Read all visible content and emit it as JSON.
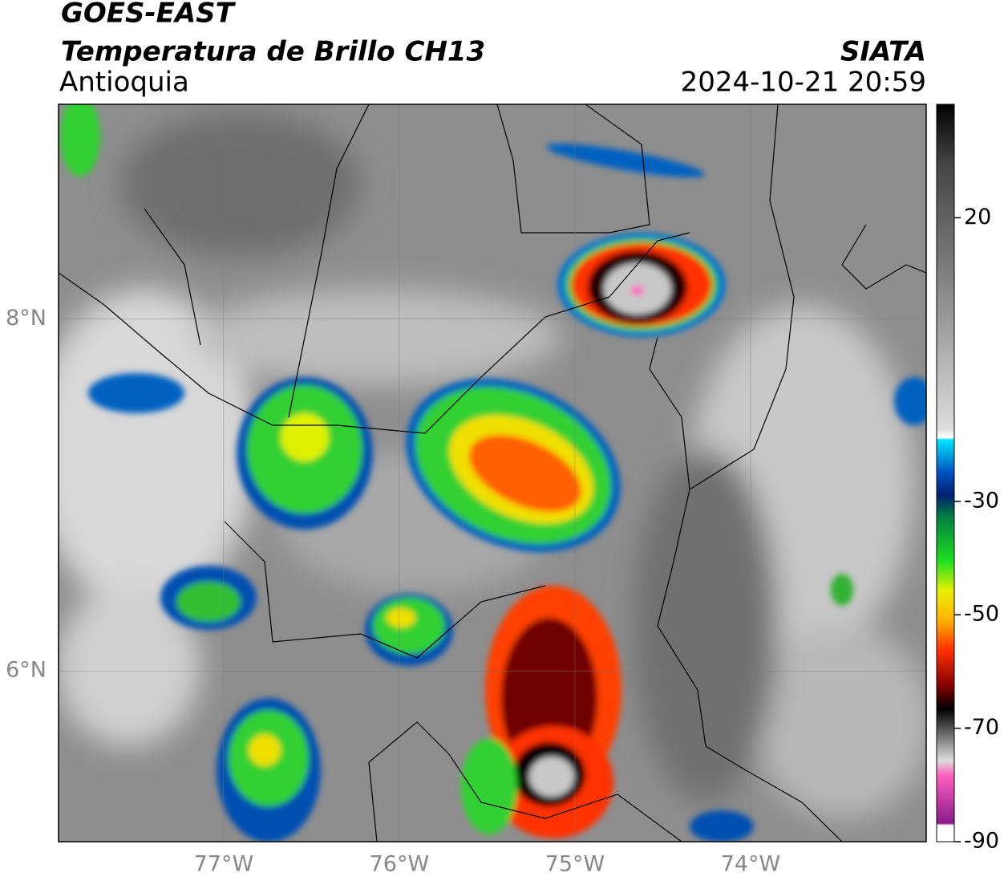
{
  "header": {
    "title": "GOES-EAST",
    "subtitle": "Temperatura de Brillo CH13",
    "region": "Antioquia",
    "agency": "SIATA",
    "datetime": "2024-10-21 20:59"
  },
  "map": {
    "xlim": [
      -77.94,
      -73.0
    ],
    "ylim": [
      5.03,
      9.22
    ],
    "xticks": [
      {
        "value": -77,
        "label": "77°W"
      },
      {
        "value": -76,
        "label": "76°W"
      },
      {
        "value": -75,
        "label": "75°W"
      },
      {
        "value": -74,
        "label": "74°W"
      }
    ],
    "yticks": [
      {
        "value": 8,
        "label": "8°N"
      },
      {
        "value": 6,
        "label": "6°N"
      }
    ]
  },
  "colorbar": {
    "lim": [
      -90,
      40
    ],
    "ticks": [
      20,
      -30,
      -50,
      -70,
      -90
    ]
  }
}
